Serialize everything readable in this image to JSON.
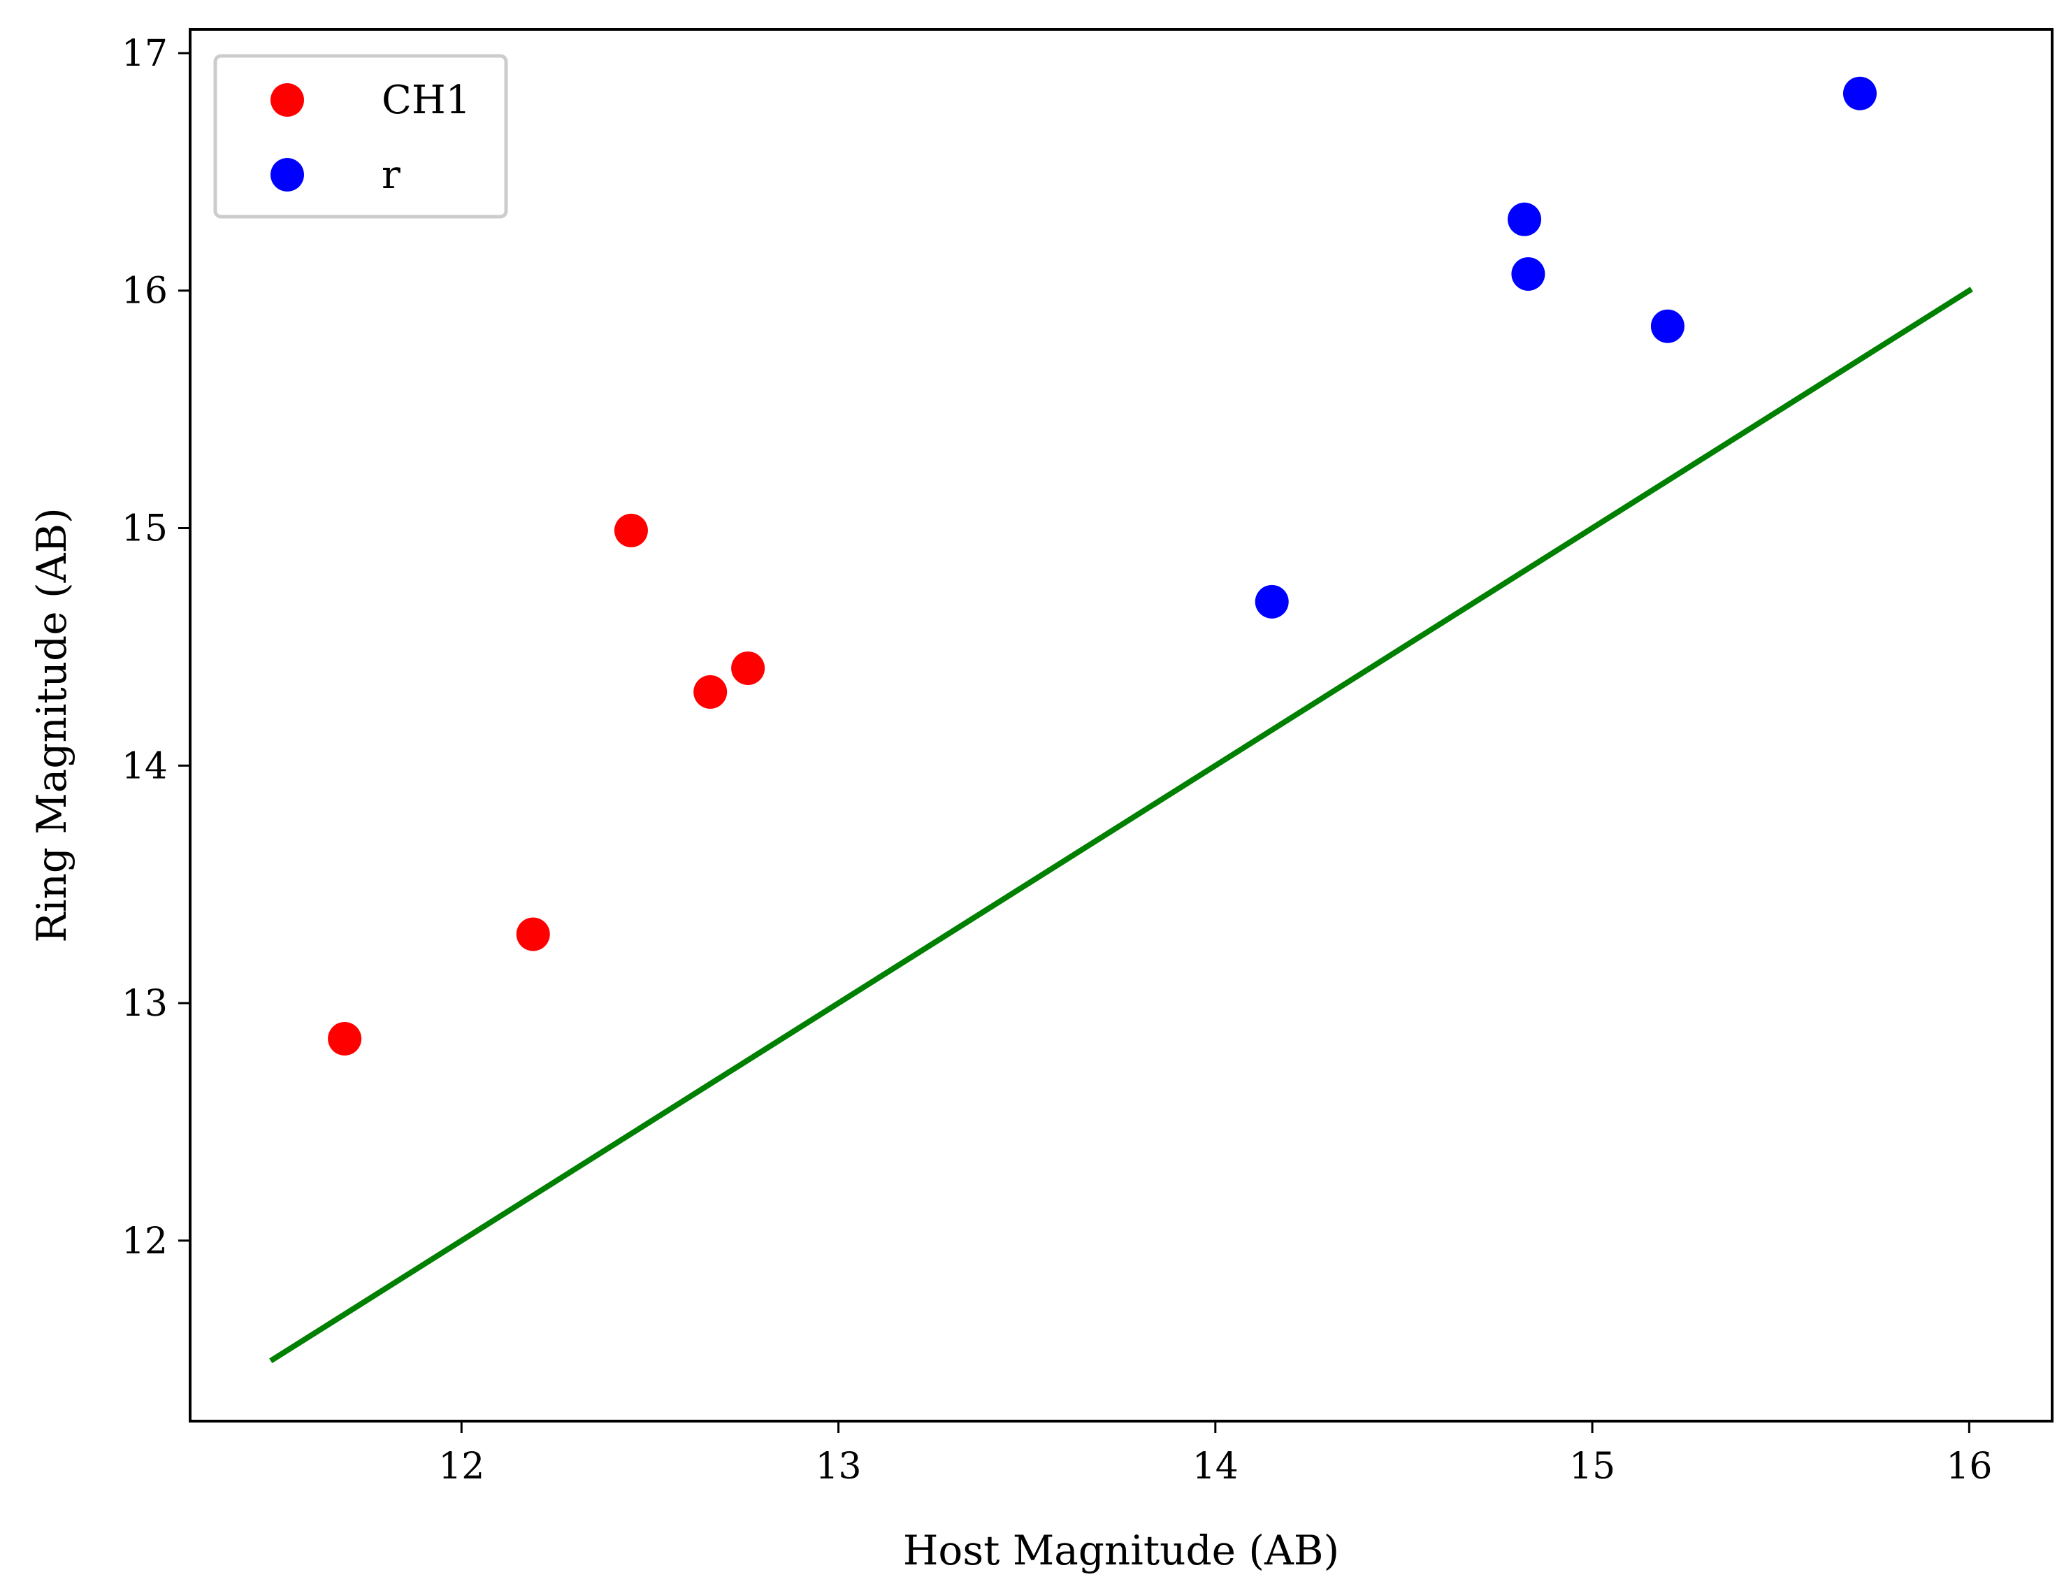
{
  "chart_data": {
    "type": "scatter",
    "title": "",
    "xlabel": "Host Magnitude (AB)",
    "ylabel": "Ring Magnitude (AB)",
    "xlim": [
      11.28,
      16.22
    ],
    "ylim": [
      11.24,
      17.1
    ],
    "xticks": [
      12,
      13,
      14,
      15,
      16
    ],
    "yticks": [
      12,
      13,
      14,
      15,
      16,
      17
    ],
    "grid": false,
    "legend_position": "top-left",
    "series": [
      {
        "name": "CH1",
        "color": "#ff0000",
        "marker": "circle",
        "x": [
          11.69,
          12.19,
          12.45,
          12.66,
          12.76
        ],
        "y": [
          12.85,
          13.29,
          14.99,
          14.31,
          14.41
        ]
      },
      {
        "name": "r",
        "color": "#0000ff",
        "marker": "circle",
        "x": [
          14.15,
          14.82,
          14.83,
          15.2,
          15.71
        ],
        "y": [
          14.69,
          16.3,
          16.07,
          15.85,
          16.83
        ]
      }
    ],
    "reference_line": {
      "name": "y = x",
      "color": "#008000",
      "x": [
        11.5,
        16.0
      ],
      "y": [
        11.5,
        16.0
      ]
    }
  }
}
